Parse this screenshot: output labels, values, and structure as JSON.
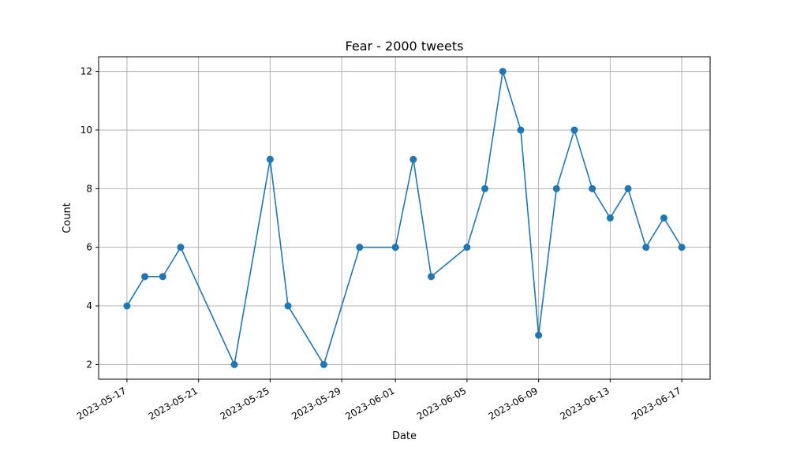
{
  "chart_data": {
    "type": "line",
    "title": "Fear - 2000 tweets",
    "xlabel": "Date",
    "ylabel": "Count",
    "x_ticks": [
      "2023-05-17",
      "2023-05-21",
      "2023-05-25",
      "2023-05-29",
      "2023-06-01",
      "2023-06-05",
      "2023-06-09",
      "2023-06-13",
      "2023-06-17"
    ],
    "y_ticks": [
      2,
      4,
      6,
      8,
      10,
      12
    ],
    "xlim": [
      "2023-05-15T10:00",
      "2023-06-18T14:00"
    ],
    "ylim": [
      1.5,
      12.5
    ],
    "grid": true,
    "series": [
      {
        "color": "#1f77b4",
        "points": [
          {
            "x": "2023-05-17",
            "y": 4
          },
          {
            "x": "2023-05-18",
            "y": 5
          },
          {
            "x": "2023-05-19",
            "y": 5
          },
          {
            "x": "2023-05-20",
            "y": 6
          },
          {
            "x": "2023-05-23",
            "y": 2
          },
          {
            "x": "2023-05-25",
            "y": 9
          },
          {
            "x": "2023-05-26",
            "y": 4
          },
          {
            "x": "2023-05-28",
            "y": 2
          },
          {
            "x": "2023-05-30",
            "y": 6
          },
          {
            "x": "2023-06-01",
            "y": 6
          },
          {
            "x": "2023-06-02",
            "y": 9
          },
          {
            "x": "2023-06-03",
            "y": 5
          },
          {
            "x": "2023-06-05",
            "y": 6
          },
          {
            "x": "2023-06-06",
            "y": 8
          },
          {
            "x": "2023-06-07",
            "y": 12
          },
          {
            "x": "2023-06-08",
            "y": 10
          },
          {
            "x": "2023-06-09",
            "y": 3
          },
          {
            "x": "2023-06-10",
            "y": 8
          },
          {
            "x": "2023-06-11",
            "y": 10
          },
          {
            "x": "2023-06-12",
            "y": 8
          },
          {
            "x": "2023-06-13",
            "y": 7
          },
          {
            "x": "2023-06-14",
            "y": 8
          },
          {
            "x": "2023-06-15",
            "y": 6
          },
          {
            "x": "2023-06-16",
            "y": 7
          },
          {
            "x": "2023-06-17",
            "y": 6
          }
        ]
      }
    ]
  }
}
